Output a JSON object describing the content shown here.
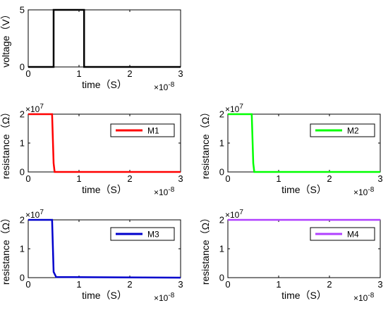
{
  "chart_data": [
    {
      "id": "voltage",
      "type": "line",
      "xlabel": "time（S）",
      "ylabel": "voltage（V）",
      "x_multiplier": "×10",
      "x_exponent": "-8",
      "xlim": [
        0,
        3
      ],
      "ylim": [
        0,
        5
      ],
      "xticks": [
        "0",
        "1",
        "2",
        "3"
      ],
      "yticks": [
        "0",
        "5"
      ],
      "ytick_values": [
        0,
        5
      ],
      "series": [
        {
          "color": "#000000",
          "x": [
            0,
            0.5,
            0.5,
            1.1,
            1.1,
            3
          ],
          "y": [
            0,
            0,
            5,
            5,
            0,
            0
          ]
        }
      ]
    },
    {
      "id": "m1",
      "type": "line",
      "xlabel": "time（S）",
      "ylabel": "resistance（Ω）",
      "x_multiplier": "×10",
      "x_exponent": "-8",
      "y_multiplier": "×10",
      "y_exponent": "7",
      "xlim": [
        0,
        3
      ],
      "ylim": [
        0,
        2
      ],
      "xticks": [
        "0",
        "1",
        "2",
        "3"
      ],
      "yticks": [
        "0",
        "1",
        "2"
      ],
      "ytick_values": [
        0,
        1,
        2
      ],
      "legend": {
        "label": "M1",
        "color": "#ff0000"
      },
      "series": [
        {
          "name": "M1",
          "color": "#ff0000",
          "x": [
            0,
            0.47,
            0.5,
            0.52,
            3
          ],
          "y": [
            2,
            2,
            0.3,
            0,
            0
          ]
        }
      ]
    },
    {
      "id": "m2",
      "type": "line",
      "xlabel": "time（S）",
      "ylabel": "resistance（Ω）",
      "x_multiplier": "×10",
      "x_exponent": "-8",
      "y_multiplier": "×10",
      "y_exponent": "7",
      "xlim": [
        0,
        3
      ],
      "ylim": [
        0,
        2
      ],
      "xticks": [
        "0",
        "1",
        "2",
        "3"
      ],
      "yticks": [
        "0",
        "1",
        "2"
      ],
      "ytick_values": [
        0,
        1,
        2
      ],
      "legend": {
        "label": "M2",
        "color": "#00ff00"
      },
      "series": [
        {
          "name": "M2",
          "color": "#00ff00",
          "x": [
            0,
            0.47,
            0.5,
            0.52,
            3
          ],
          "y": [
            2,
            2,
            0.3,
            0,
            0
          ]
        }
      ]
    },
    {
      "id": "m3",
      "type": "line",
      "xlabel": "time（S）",
      "ylabel": "resistance（Ω）",
      "x_multiplier": "×10",
      "x_exponent": "-8",
      "y_multiplier": "×10",
      "y_exponent": "7",
      "xlim": [
        0,
        3
      ],
      "ylim": [
        0,
        2
      ],
      "xticks": [
        "0",
        "1",
        "2",
        "3"
      ],
      "yticks": [
        "0",
        "1",
        "2"
      ],
      "ytick_values": [
        0,
        1,
        2
      ],
      "legend": {
        "label": "M3",
        "color": "#0000cc"
      },
      "series": [
        {
          "name": "M3",
          "color": "#0000cc",
          "x": [
            0,
            0.47,
            0.5,
            0.55,
            3
          ],
          "y": [
            2,
            2,
            0.2,
            0.02,
            0
          ]
        }
      ]
    },
    {
      "id": "m4",
      "type": "line",
      "xlabel": "time（S）",
      "ylabel": "resistance（Ω）",
      "x_multiplier": "×10",
      "x_exponent": "-8",
      "y_multiplier": "×10",
      "y_exponent": "7",
      "xlim": [
        0,
        3
      ],
      "ylim": [
        0,
        2
      ],
      "xticks": [
        "0",
        "1",
        "2",
        "3"
      ],
      "yticks": [
        "0",
        "1",
        "2"
      ],
      "ytick_values": [
        0,
        1,
        2
      ],
      "legend": {
        "label": "M4",
        "color": "#b040ff"
      },
      "series": [
        {
          "name": "M4",
          "color": "#b040ff",
          "x": [
            0,
            3
          ],
          "y": [
            2,
            2
          ]
        }
      ]
    }
  ]
}
